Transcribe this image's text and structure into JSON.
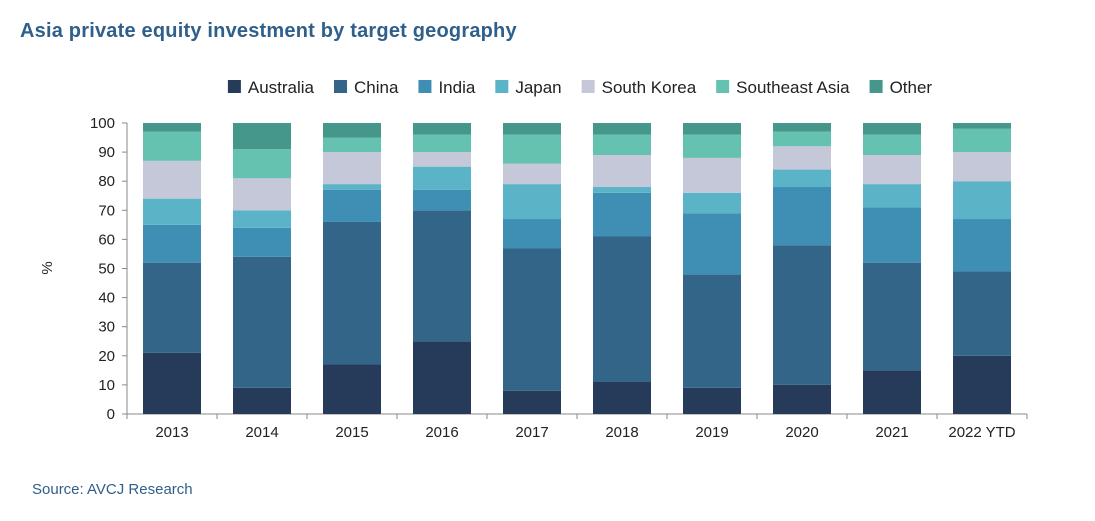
{
  "chart_data": {
    "type": "bar",
    "stacked": true,
    "title": "Asia private equity investment by target geography",
    "xlabel": "",
    "ylabel": "%",
    "ylim": [
      0,
      100
    ],
    "yticks": [
      0,
      10,
      20,
      30,
      40,
      50,
      60,
      70,
      80,
      90,
      100
    ],
    "categories": [
      "2013",
      "2014",
      "2015",
      "2016",
      "2017",
      "2018",
      "2019",
      "2020",
      "2021",
      "2022 YTD"
    ],
    "legend_position": "top",
    "series": [
      {
        "name": "Australia",
        "color": "#263a59",
        "values": [
          21,
          9,
          17,
          25,
          8,
          11,
          9,
          10,
          15,
          20
        ]
      },
      {
        "name": "China",
        "color": "#336588",
        "values": [
          31,
          45,
          49,
          45,
          49,
          50,
          39,
          48,
          37,
          29
        ]
      },
      {
        "name": "India",
        "color": "#3f8fb5",
        "values": [
          13,
          10,
          11,
          7,
          10,
          15,
          21,
          20,
          19,
          18
        ]
      },
      {
        "name": "Japan",
        "color": "#5bb3c8",
        "values": [
          9,
          6,
          2,
          8,
          12,
          2,
          7,
          6,
          8,
          13
        ]
      },
      {
        "name": "South Korea",
        "color": "#c5c8d9",
        "values": [
          13,
          11,
          11,
          5,
          7,
          11,
          12,
          8,
          10,
          10
        ]
      },
      {
        "name": "Southeast Asia",
        "color": "#66c2b0",
        "values": [
          10,
          10,
          5,
          6,
          10,
          7,
          8,
          5,
          7,
          8
        ]
      },
      {
        "name": "Other",
        "color": "#45978b",
        "values": [
          3,
          9,
          5,
          4,
          4,
          4,
          4,
          3,
          4,
          2
        ]
      }
    ]
  },
  "footer": {
    "source": "Source: AVCJ Research"
  }
}
